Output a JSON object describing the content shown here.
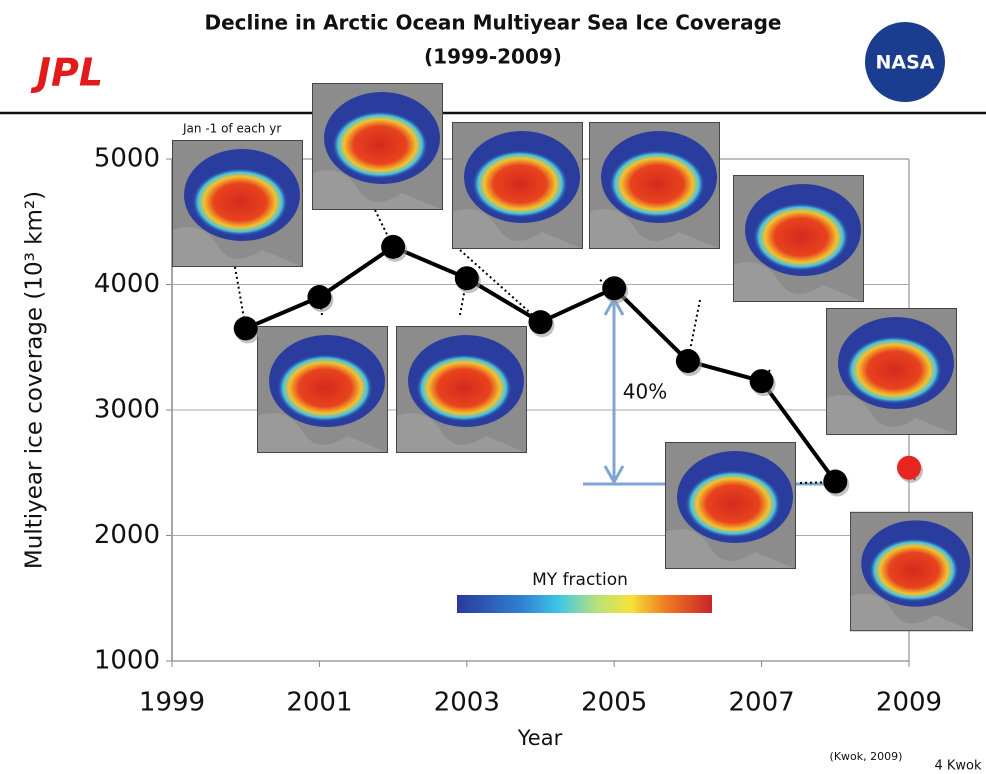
{
  "chart_data": {
    "type": "line",
    "title": "Decline in Arctic Ocean Multiyear Sea Ice Coverage",
    "subtitle": "(1999-2009)",
    "x_label": "Year",
    "y_label": "Multiyear ice coverage (10³ km²)",
    "x": [
      2000,
      2001,
      2002,
      2003,
      2004,
      2005,
      2006,
      2007,
      2008,
      2009
    ],
    "series": [
      {
        "color": "#000000",
        "values": [
          3650,
          3900,
          4300,
          4050,
          3700,
          3970,
          3390,
          3230,
          2430,
          null
        ]
      },
      {
        "color": "#e8251f",
        "values": [
          null,
          null,
          null,
          null,
          null,
          null,
          null,
          null,
          null,
          2540
        ]
      }
    ],
    "xlim": [
      1999,
      2009
    ],
    "xticks": [
      1999,
      2001,
      2003,
      2005,
      2007,
      2009
    ],
    "ylim": [
      1000,
      5000
    ],
    "yticks": [
      1000,
      2000,
      3000,
      4000,
      5000
    ],
    "grid": true,
    "annotations": {
      "note": "Jan -1 of each yr",
      "change": "40%",
      "colorbar": "MY fraction",
      "source": "(Kwok, 2009)",
      "footer": "4  Kwok",
      "left_logo": "JPL",
      "right_logo": "NASA"
    }
  }
}
